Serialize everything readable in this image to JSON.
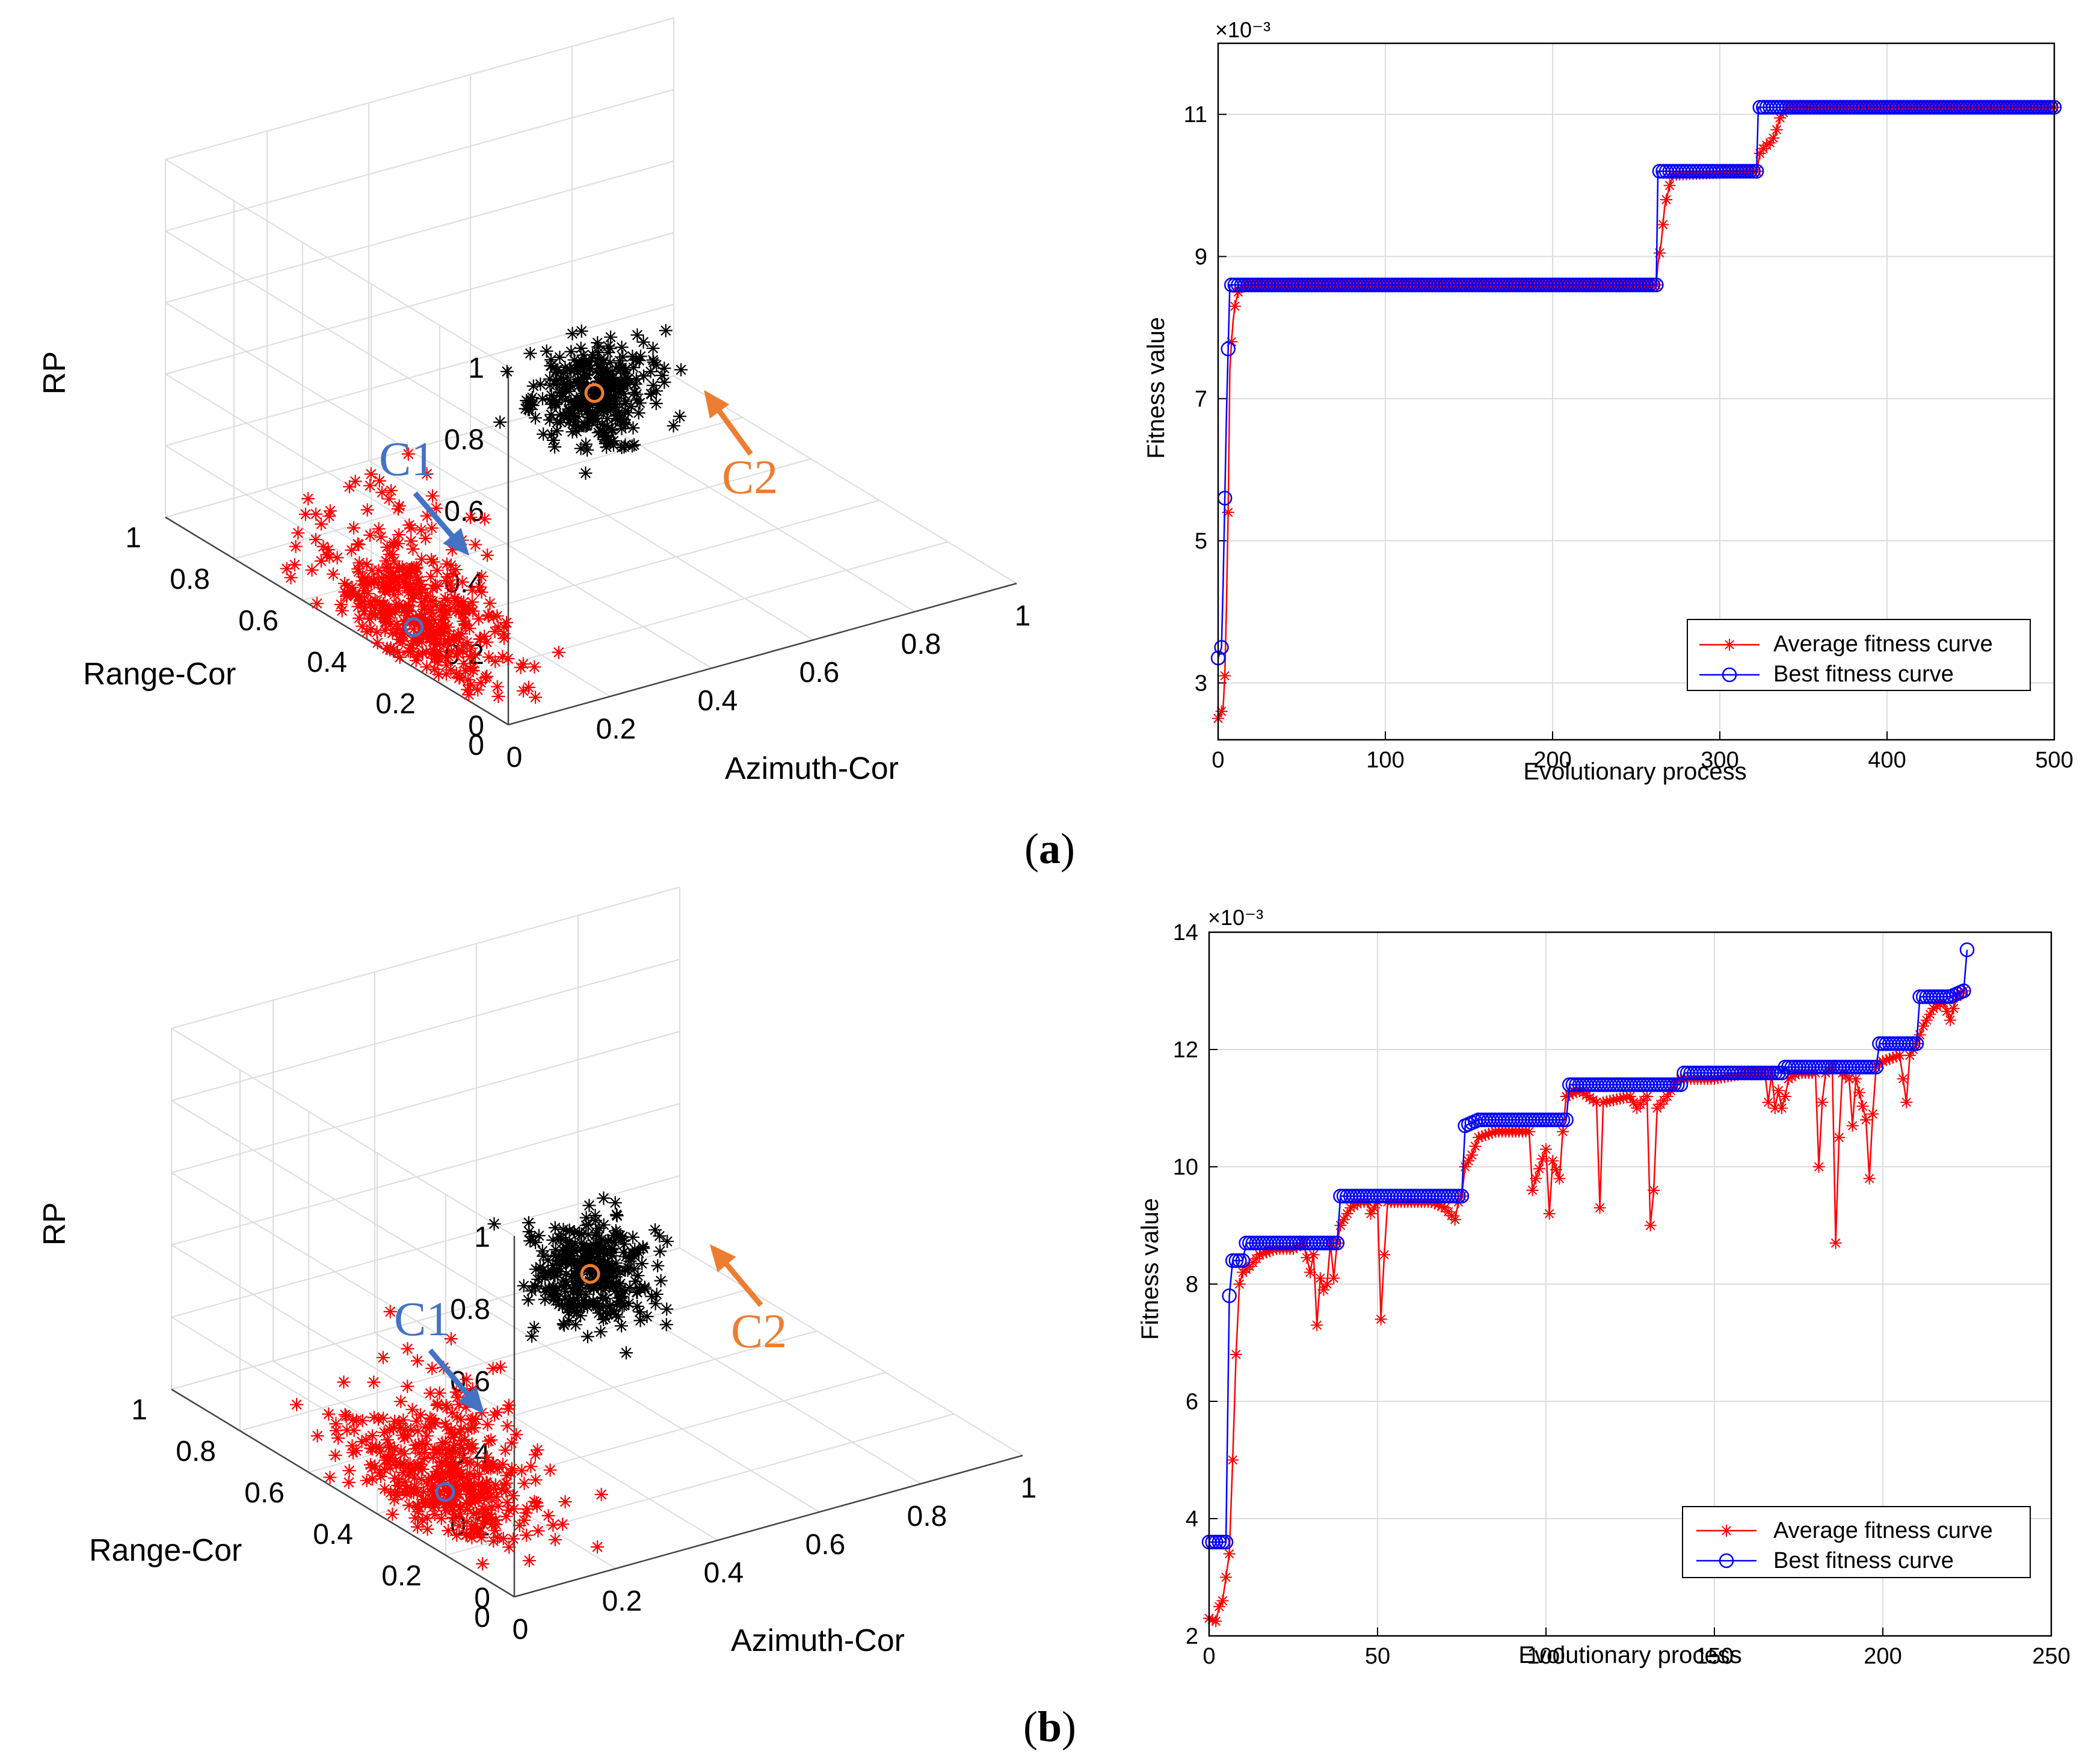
{
  "figure": {
    "panels": [
      {
        "caption_letter": "a",
        "scatter3d": {
          "type": "scatter",
          "projection": "3d",
          "zlabel": "RP",
          "ylabel": "Range-Cor",
          "xlabel": "Azimuth-Cor",
          "z_ticks": [
            "0",
            "0.2",
            "0.4",
            "0.6",
            "0.8",
            "1"
          ],
          "y_ticks": [
            "0",
            "0.2",
            "0.4",
            "0.6",
            "0.8",
            "1"
          ],
          "x_ticks": [
            "0",
            "0.2",
            "0.4",
            "0.6",
            "0.8",
            "1"
          ],
          "xlim": [
            0,
            1
          ],
          "ylim": [
            0,
            1
          ],
          "zlim": [
            0,
            1
          ],
          "grid": true,
          "clusters": [
            {
              "label": "C1",
              "label_color": "#4472C4",
              "marker_color": "#ff0000",
              "center_az": 0.05,
              "center_range": 0.35,
              "center_rp": 0.05,
              "sd_az": 0.05,
              "sd_range": 0.13,
              "sd_rp": 0.06,
              "centroid": {
                "az": 0.05,
                "range": 0.35,
                "rp": 0.05
              }
            },
            {
              "label": "C2",
              "label_color": "#ED7D31",
              "marker_color": "#000000",
              "center_az": 0.52,
              "center_range": 0.52,
              "center_rp": 0.42,
              "sd_az": 0.05,
              "sd_range": 0.05,
              "sd_rp": 0.05,
              "centroid": {
                "az": 0.52,
                "range": 0.52,
                "rp": 0.42
              }
            }
          ]
        },
        "chart_data": {
          "type": "line",
          "xlabel": "Evolutionary process",
          "ylabel": "Fitness value",
          "exponent_label": "×10⁻³",
          "xlim": [
            0,
            500
          ],
          "ylim": [
            2.2,
            12.0
          ],
          "x_ticks": [
            0,
            100,
            200,
            300,
            400,
            500
          ],
          "y_ticks": [
            3,
            5,
            7,
            9,
            11
          ],
          "grid": true,
          "legend_position": "bottom-right",
          "series": [
            {
              "name": "Average fitness curve",
              "color": "#ff0000",
              "marker": "asterisk",
              "points": [
                [
                  0,
                  2.5
                ],
                [
                  1,
                  2.55
                ],
                [
                  2,
                  2.6
                ],
                [
                  3,
                  2.65
                ],
                [
                  4,
                  3.1
                ],
                [
                  5,
                  4.1
                ],
                [
                  6,
                  5.4
                ],
                [
                  7,
                  7.4
                ],
                [
                  8,
                  7.8
                ],
                [
                  9,
                  8.1
                ],
                [
                  10,
                  8.3
                ],
                [
                  12,
                  8.5
                ],
                [
                  15,
                  8.6
                ],
                [
                  262,
                  8.6
                ],
                [
                  263,
                  8.9
                ],
                [
                  265,
                  9.2
                ],
                [
                  267,
                  9.7
                ],
                [
                  270,
                  10.0
                ],
                [
                  272,
                  10.15
                ],
                [
                  322,
                  10.2
                ],
                [
                  324,
                  10.45
                ],
                [
                  327,
                  10.55
                ],
                [
                  330,
                  10.6
                ],
                [
                  333,
                  10.7
                ],
                [
                  336,
                  10.95
                ],
                [
                  340,
                  11.1
                ],
                [
                  500,
                  11.1
                ]
              ]
            },
            {
              "name": "Best fitness curve",
              "color": "#0000ff",
              "marker": "circle",
              "points": [
                [
                  0,
                  3.35
                ],
                [
                  2,
                  3.5
                ],
                [
                  3,
                  4.4
                ],
                [
                  5,
                  6.8
                ],
                [
                  7,
                  8.6
                ],
                [
                  262,
                  8.6
                ],
                [
                  263,
                  10.2
                ],
                [
                  322,
                  10.2
                ],
                [
                  323,
                  11.1
                ],
                [
                  500,
                  11.1
                ]
              ]
            }
          ]
        }
      },
      {
        "caption_letter": "b",
        "scatter3d": {
          "type": "scatter",
          "projection": "3d",
          "zlabel": "RP",
          "ylabel": "Range-Cor",
          "xlabel": "Azimuth-Cor",
          "z_ticks": [
            "0",
            "0.2",
            "0.4",
            "0.6",
            "0.8",
            "1"
          ],
          "y_ticks": [
            "0",
            "0.2",
            "0.4",
            "0.6",
            "0.8",
            "1"
          ],
          "x_ticks": [
            "0",
            "0.2",
            "0.4",
            "0.6",
            "0.8",
            "1"
          ],
          "xlim": [
            0,
            1
          ],
          "ylim": [
            0,
            1
          ],
          "zlim": [
            0,
            1
          ],
          "grid": true,
          "clusters": [
            {
              "label": "C1",
              "label_color": "#4472C4",
              "marker_color": "#ff0000",
              "center_az": 0.1,
              "center_range": 0.35,
              "center_rp": 0.05,
              "sd_az": 0.05,
              "sd_range": 0.12,
              "sd_rp": 0.06,
              "centroid": {
                "az": 0.1,
                "range": 0.35,
                "rp": 0.05
              }
            },
            {
              "label": "C2",
              "label_color": "#ED7D31",
              "marker_color": "#000000",
              "center_az": 0.5,
              "center_range": 0.52,
              "center_rp": 0.4,
              "sd_az": 0.05,
              "sd_range": 0.05,
              "sd_rp": 0.05,
              "centroid": {
                "az": 0.5,
                "range": 0.52,
                "rp": 0.4
              }
            }
          ]
        },
        "chart_data": {
          "type": "line",
          "xlabel": "Evolutionary process",
          "ylabel": "Fitness value",
          "exponent_label": "×10⁻³",
          "xlim": [
            0,
            250
          ],
          "ylim": [
            2,
            14
          ],
          "x_ticks": [
            0,
            50,
            100,
            150,
            200,
            250
          ],
          "y_ticks": [
            2,
            4,
            6,
            8,
            10,
            12,
            14
          ],
          "grid": true,
          "legend_position": "bottom-right",
          "series": [
            {
              "name": "Average fitness curve",
              "color": "#ff0000",
              "marker": "asterisk",
              "points": [
                [
                  0,
                  2.3
                ],
                [
                  2,
                  2.25
                ],
                [
                  3,
                  2.5
                ],
                [
                  4,
                  2.6
                ],
                [
                  6,
                  3.4
                ],
                [
                  7,
                  5.0
                ],
                [
                  8,
                  6.8
                ],
                [
                  9,
                  8.0
                ],
                [
                  10,
                  8.2
                ],
                [
                  12,
                  8.3
                ],
                [
                  15,
                  8.5
                ],
                [
                  20,
                  8.6
                ],
                [
                  25,
                  8.6
                ],
                [
                  28,
                  8.7
                ],
                [
                  30,
                  8.2
                ],
                [
                  31,
                  8.5
                ],
                [
                  32,
                  7.3
                ],
                [
                  33,
                  8.1
                ],
                [
                  34,
                  7.9
                ],
                [
                  35,
                  8.0
                ],
                [
                  36,
                  8.7
                ],
                [
                  37,
                  8.1
                ],
                [
                  38,
                  8.7
                ],
                [
                  39,
                  9.0
                ],
                [
                  40,
                  9.1
                ],
                [
                  42,
                  9.3
                ],
                [
                  45,
                  9.4
                ],
                [
                  47,
                  9.4
                ],
                [
                  48,
                  9.2
                ],
                [
                  50,
                  9.4
                ],
                [
                  51,
                  7.4
                ],
                [
                  52,
                  8.5
                ],
                [
                  53,
                  9.4
                ],
                [
                  60,
                  9.4
                ],
                [
                  66,
                  9.4
                ],
                [
                  70,
                  9.3
                ],
                [
                  73,
                  9.1
                ],
                [
                  74,
                  9.4
                ],
                [
                  75,
                  9.5
                ],
                [
                  76,
                  10.0
                ],
                [
                  78,
                  10.2
                ],
                [
                  80,
                  10.5
                ],
                [
                  85,
                  10.6
                ],
                [
                  95,
                  10.6
                ],
                [
                  96,
                  9.6
                ],
                [
                  97,
                  9.8
                ],
                [
                  100,
                  10.3
                ],
                [
                  101,
                  9.2
                ],
                [
                  102,
                  10.1
                ],
                [
                  104,
                  9.8
                ],
                [
                  105,
                  10.6
                ],
                [
                  106,
                  11.2
                ],
                [
                  110,
                  11.3
                ],
                [
                  115,
                  11.1
                ],
                [
                  116,
                  9.3
                ],
                [
                  117,
                  11.1
                ],
                [
                  125,
                  11.2
                ],
                [
                  126,
                  11.1
                ],
                [
                  127,
                  11.0
                ],
                [
                  130,
                  11.2
                ],
                [
                  131,
                  9.0
                ],
                [
                  132,
                  9.6
                ],
                [
                  133,
                  11.0
                ],
                [
                  136,
                  11.2
                ],
                [
                  138,
                  11.4
                ],
                [
                  140,
                  11.5
                ],
                [
                  145,
                  11.5
                ],
                [
                  150,
                  11.5
                ],
                [
                  160,
                  11.6
                ],
                [
                  165,
                  11.6
                ],
                [
                  166,
                  11.1
                ],
                [
                  167,
                  11.6
                ],
                [
                  168,
                  11.0
                ],
                [
                  169,
                  11.3
                ],
                [
                  170,
                  11.0
                ],
                [
                  171,
                  11.2
                ],
                [
                  172,
                  11.5
                ],
                [
                  175,
                  11.6
                ],
                [
                  180,
                  11.6
                ],
                [
                  181,
                  10.0
                ],
                [
                  182,
                  11.1
                ],
                [
                  183,
                  11.6
                ],
                [
                  185,
                  11.7
                ],
                [
                  186,
                  8.7
                ],
                [
                  187,
                  10.5
                ],
                [
                  188,
                  11.6
                ],
                [
                  190,
                  11.5
                ],
                [
                  191,
                  10.7
                ],
                [
                  192,
                  11.5
                ],
                [
                  195,
                  10.8
                ],
                [
                  196,
                  9.8
                ],
                [
                  197,
                  10.9
                ],
                [
                  198,
                  11.7
                ],
                [
                  200,
                  11.8
                ],
                [
                  205,
                  11.9
                ],
                [
                  206,
                  11.5
                ],
                [
                  207,
                  11.1
                ],
                [
                  208,
                  11.9
                ],
                [
                  210,
                  12.1
                ],
                [
                  212,
                  12.4
                ],
                [
                  215,
                  12.7
                ],
                [
                  218,
                  12.8
                ],
                [
                  220,
                  12.5
                ],
                [
                  222,
                  12.9
                ],
                [
                  224,
                  13.0
                ]
              ]
            },
            {
              "name": "Best fitness curve",
              "color": "#0000ff",
              "marker": "circle",
              "points": [
                [
                  0,
                  3.6
                ],
                [
                  3,
                  3.6
                ],
                [
                  5,
                  3.6
                ],
                [
                  6,
                  7.8
                ],
                [
                  7,
                  8.4
                ],
                [
                  10,
                  8.4
                ],
                [
                  11,
                  8.7
                ],
                [
                  38,
                  8.7
                ],
                [
                  39,
                  9.5
                ],
                [
                  75,
                  9.5
                ],
                [
                  76,
                  10.7
                ],
                [
                  80,
                  10.8
                ],
                [
                  106,
                  10.8
                ],
                [
                  107,
                  11.4
                ],
                [
                  140,
                  11.4
                ],
                [
                  141,
                  11.6
                ],
                [
                  170,
                  11.6
                ],
                [
                  171,
                  11.7
                ],
                [
                  198,
                  11.7
                ],
                [
                  199,
                  12.1
                ],
                [
                  210,
                  12.1
                ],
                [
                  211,
                  12.9
                ],
                [
                  220,
                  12.9
                ],
                [
                  224,
                  13.0
                ],
                [
                  225,
                  13.7
                ]
              ]
            }
          ]
        }
      }
    ]
  }
}
